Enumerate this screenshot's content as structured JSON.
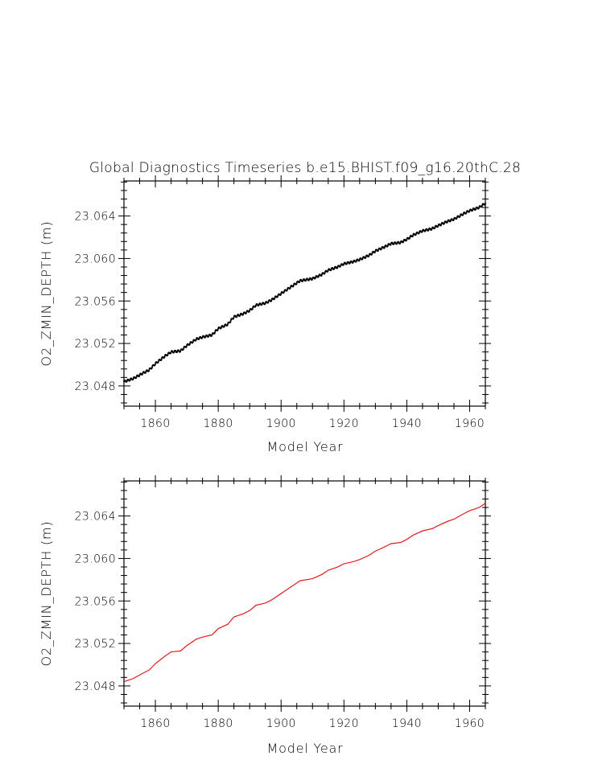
{
  "chart_data": [
    {
      "type": "line",
      "title": "Global Diagnostics Timeseries b.e15.BHIST.f09_g16.20thC.28",
      "xlabel": "Model Year",
      "ylabel": "O2_ZMIN_DEPTH (m)",
      "xlim": [
        1850,
        1965
      ],
      "ylim": [
        23.0461,
        23.0673
      ],
      "xticks": [
        1860,
        1880,
        1900,
        1920,
        1940,
        1960
      ],
      "xtick_labels": [
        "1860",
        "1880",
        "1900",
        "1920",
        "1940",
        "1960"
      ],
      "yticks": [
        23.048,
        23.052,
        23.056,
        23.06,
        23.064
      ],
      "ytick_labels": [
        "23.048",
        "23.052",
        "23.056",
        "23.060",
        "23.064"
      ],
      "grid": false,
      "series": [
        {
          "x": [
            1850,
            1853,
            1856,
            1858,
            1860,
            1863,
            1865,
            1868,
            1870,
            1873,
            1875,
            1878,
            1880,
            1883,
            1885,
            1888,
            1890,
            1892,
            1895,
            1897,
            1900,
            1902,
            1904,
            1906,
            1910,
            1913,
            1915,
            1918,
            1920,
            1923,
            1925,
            1928,
            1930,
            1933,
            1935,
            1938,
            1940,
            1942,
            1945,
            1948,
            1950,
            1953,
            1955,
            1958,
            1960,
            1963,
            1965
          ],
          "y": [
            23.0484,
            23.0487,
            23.0492,
            23.0495,
            23.0501,
            23.0508,
            23.0512,
            23.0513,
            23.0518,
            23.0524,
            23.0526,
            23.0528,
            23.0534,
            23.0538,
            23.0545,
            23.0548,
            23.0551,
            23.0556,
            23.0558,
            23.0561,
            23.0567,
            23.0571,
            23.0575,
            23.0579,
            23.0581,
            23.0585,
            23.0589,
            23.0592,
            23.0595,
            23.0597,
            23.0599,
            23.0603,
            23.0607,
            23.0611,
            23.0614,
            23.0615,
            23.0618,
            23.0622,
            23.0626,
            23.0628,
            23.0631,
            23.0635,
            23.0637,
            23.0642,
            23.0645,
            23.0648,
            23.0652
          ],
          "color": "#8b0000",
          "marker_color": "#000000",
          "monthly_wiggle": true
        }
      ]
    },
    {
      "type": "line",
      "title": "",
      "xlabel": "Model Year",
      "ylabel": "O2_ZMIN_DEPTH (m)",
      "xlim": [
        1850,
        1965
      ],
      "ylim": [
        23.0461,
        23.0673
      ],
      "xticks": [
        1860,
        1880,
        1900,
        1920,
        1940,
        1960
      ],
      "xtick_labels": [
        "1860",
        "1880",
        "1900",
        "1920",
        "1940",
        "1960"
      ],
      "yticks": [
        23.048,
        23.052,
        23.056,
        23.06,
        23.064
      ],
      "ytick_labels": [
        "23.048",
        "23.052",
        "23.056",
        "23.060",
        "23.064"
      ],
      "grid": false,
      "series": [
        {
          "x": [
            1850,
            1853,
            1856,
            1858,
            1860,
            1863,
            1865,
            1868,
            1870,
            1873,
            1875,
            1878,
            1880,
            1883,
            1885,
            1888,
            1890,
            1892,
            1895,
            1897,
            1900,
            1902,
            1904,
            1906,
            1910,
            1913,
            1915,
            1918,
            1920,
            1923,
            1925,
            1928,
            1930,
            1933,
            1935,
            1938,
            1940,
            1942,
            1945,
            1948,
            1950,
            1953,
            1955,
            1958,
            1960,
            1963,
            1965
          ],
          "y": [
            23.0484,
            23.0487,
            23.0492,
            23.0495,
            23.0501,
            23.0508,
            23.0512,
            23.0513,
            23.0518,
            23.0524,
            23.0526,
            23.0528,
            23.0534,
            23.0538,
            23.0545,
            23.0548,
            23.0551,
            23.0556,
            23.0558,
            23.0561,
            23.0567,
            23.0571,
            23.0575,
            23.0579,
            23.0581,
            23.0585,
            23.0589,
            23.0592,
            23.0595,
            23.0597,
            23.0599,
            23.0603,
            23.0607,
            23.0611,
            23.0614,
            23.0615,
            23.0618,
            23.0622,
            23.0626,
            23.0628,
            23.0631,
            23.0635,
            23.0637,
            23.0642,
            23.0645,
            23.0648,
            23.0652
          ],
          "color": "#ff0000",
          "monthly_wiggle": false
        }
      ]
    }
  ]
}
